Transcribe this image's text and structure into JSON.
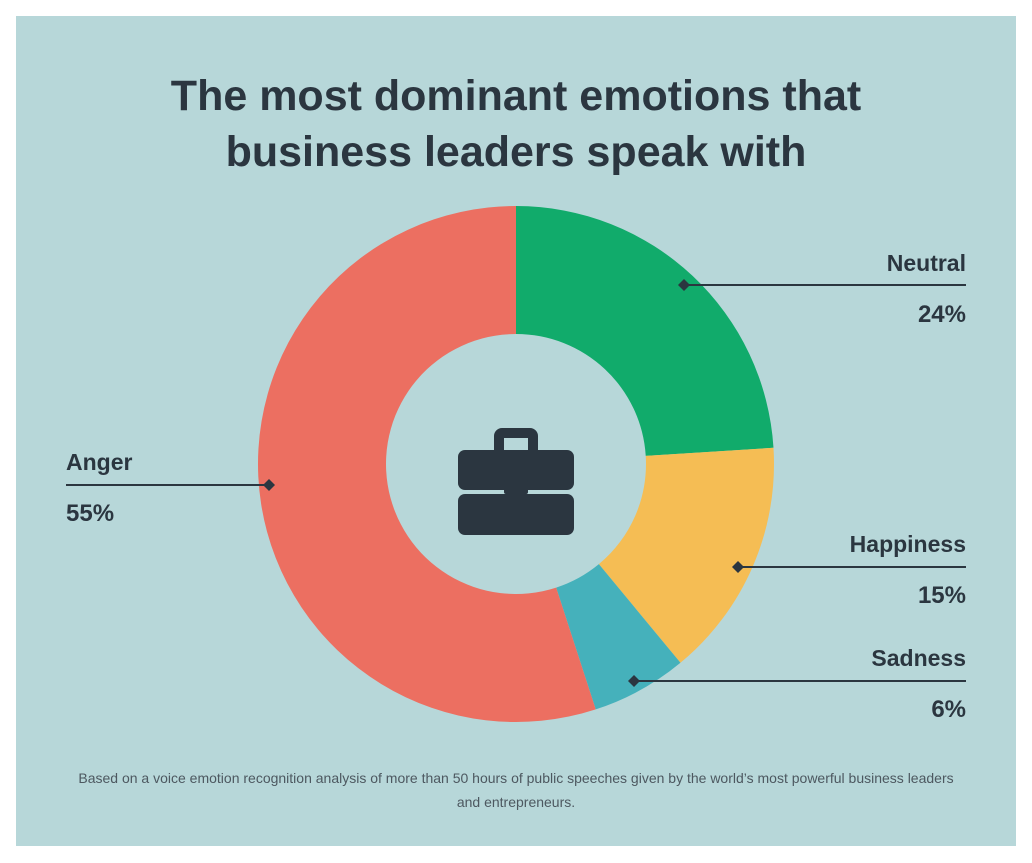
{
  "title_lines": [
    "The most dominant emotions that",
    "business leaders speak with"
  ],
  "center_icon": "briefcase-icon",
  "footnote": "Based on a voice emotion recognition analysis of more than 50 hours of public speeches given by the world’s most powerful business leaders and entrepreneurs.",
  "colors": {
    "background": "#b7d7d9",
    "text": "#2b3640",
    "Neutral": "#11ab6b",
    "Happiness": "#f5bd54",
    "Sadness": "#45b1bb",
    "Anger": "#ec6f61"
  },
  "chart_data": {
    "type": "pie",
    "donut": true,
    "labels": [
      "Neutral",
      "Happiness",
      "Sadness",
      "Anger"
    ],
    "values": [
      24,
      15,
      6,
      55
    ],
    "value_labels": [
      "24%",
      "15%",
      "6%",
      "55%"
    ]
  }
}
